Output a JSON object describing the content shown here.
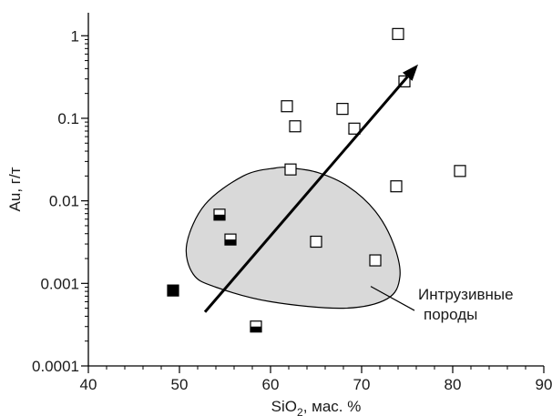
{
  "chart_data": {
    "type": "scatter",
    "x_axis": {
      "label_main": "SiO",
      "label_sub": "2",
      "label_rest": ", мас. %",
      "range": [
        40,
        90
      ],
      "major_ticks": [
        40,
        50,
        60,
        70,
        80,
        90
      ],
      "tick_labels": [
        "40",
        "50",
        "60",
        "70",
        "80",
        "90"
      ],
      "scale": "linear"
    },
    "y_axis": {
      "label": "Au, г/т",
      "range": [
        0.0001,
        1.9
      ],
      "scale": "log",
      "major_ticks": [
        0.0001,
        0.001,
        0.01,
        0.1,
        1
      ],
      "tick_labels": [
        "0.0001",
        "0.001",
        "0.01",
        "0.1",
        "1"
      ]
    },
    "grid": false,
    "series": [
      {
        "marker": "open-square",
        "points": [
          {
            "x": 74.0,
            "y": 1.05
          },
          {
            "x": 74.7,
            "y": 0.28
          },
          {
            "x": 61.8,
            "y": 0.14
          },
          {
            "x": 67.9,
            "y": 0.13
          },
          {
            "x": 62.7,
            "y": 0.08
          },
          {
            "x": 69.2,
            "y": 0.075
          },
          {
            "x": 62.2,
            "y": 0.024
          },
          {
            "x": 80.8,
            "y": 0.023
          },
          {
            "x": 73.8,
            "y": 0.015
          },
          {
            "x": 65.0,
            "y": 0.0032
          },
          {
            "x": 71.5,
            "y": 0.0019
          }
        ]
      },
      {
        "marker": "half-filled-square",
        "points": [
          {
            "x": 54.4,
            "y": 0.0068
          },
          {
            "x": 55.6,
            "y": 0.0034
          },
          {
            "x": 58.4,
            "y": 0.0003
          }
        ]
      },
      {
        "marker": "filled-square",
        "points": [
          {
            "x": 49.3,
            "y": 0.00082
          }
        ]
      }
    ],
    "region": {
      "fill": "#d9d9d9",
      "stroke": "#000000",
      "outline": [
        [
          62.3,
          0.025
        ],
        [
          65.2,
          0.022
        ],
        [
          68.5,
          0.015
        ],
        [
          71.5,
          0.0075
        ],
        [
          73.5,
          0.003
        ],
        [
          74.2,
          0.0012
        ],
        [
          72.8,
          0.00065
        ],
        [
          68.0,
          0.0005
        ],
        [
          60.0,
          0.0006
        ],
        [
          54.0,
          0.0009
        ],
        [
          51.5,
          0.0013
        ],
        [
          50.8,
          0.003
        ],
        [
          52.8,
          0.009
        ],
        [
          57.0,
          0.02
        ],
        [
          60.5,
          0.025
        ]
      ]
    },
    "trend_arrow": {
      "from": {
        "x": 52.8,
        "y": 0.00045
      },
      "to": {
        "x": 76.2,
        "y": 0.45
      }
    },
    "annotation": {
      "lines": [
        "Интрузивные",
        "породы"
      ],
      "leader_from": {
        "x": 71.0,
        "y": 0.00092
      },
      "leader_to": {
        "x": 75.8,
        "y": 0.00047
      }
    }
  }
}
